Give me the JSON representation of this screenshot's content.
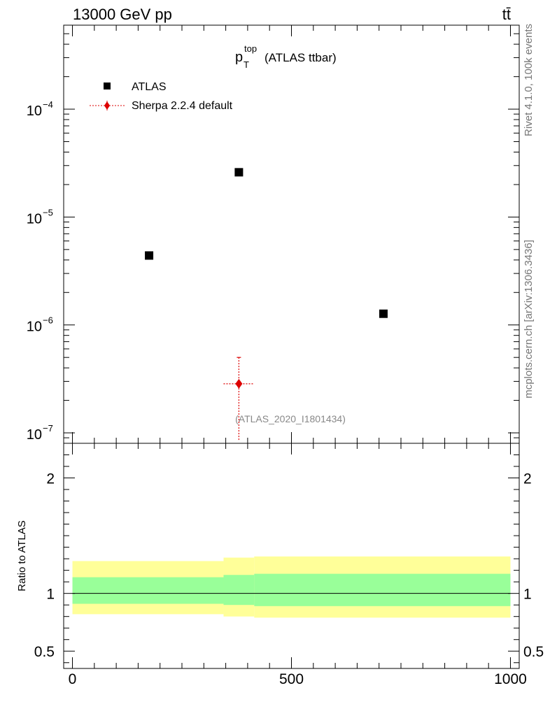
{
  "header": {
    "left_label": "13000 GeV pp",
    "right_label": "tt̄"
  },
  "side_labels": {
    "rivet": "Rivet 4.1.0,  100k events",
    "mcplots": "mcplots.cern.ch [arXiv:1306.3436]"
  },
  "chart_data": [
    {
      "type": "scatter",
      "title_main": "p",
      "title_sup": "top",
      "title_sub": "T",
      "title_rest": "(ATLAS ttbar)",
      "watermark": "(ATLAS_2020_I1801434)",
      "y_scale": "log",
      "ylim": [
        8e-08,
        0.0006
      ],
      "xlim": [
        -20,
        1020
      ],
      "y_ticks": [
        {
          "value": 1e-07,
          "base": "10",
          "exp": "−7"
        },
        {
          "value": 1e-06,
          "base": "10",
          "exp": "−6"
        },
        {
          "value": 1e-05,
          "base": "10",
          "exp": "−5"
        },
        {
          "value": 0.0001,
          "base": "10",
          "exp": "−4"
        }
      ],
      "legend_position": "top-left",
      "series": [
        {
          "name": "ATLAS",
          "marker": "square",
          "color": "#000000",
          "points": [
            {
              "x": 175,
              "y": 4.4e-06
            },
            {
              "x": 380,
              "y": 2.6e-05
            },
            {
              "x": 710,
              "y": 1.27e-06
            }
          ]
        },
        {
          "name": "Sherpa 2.2.4 default",
          "marker": "diamond",
          "color": "#dd0000",
          "line_style": "dotted",
          "points": [
            {
              "x": 380,
              "x_low": 345,
              "x_high": 415,
              "y": 2.85e-07,
              "y_low": 8.4e-08,
              "y_high": 5e-07
            }
          ]
        }
      ]
    },
    {
      "type": "area",
      "ylabel": "Ratio to ATLAS",
      "ylim": [
        0.35,
        2.3
      ],
      "xlim": [
        -20,
        1020
      ],
      "y_ticks": [
        {
          "value": 0.5,
          "label": "0.5"
        },
        {
          "value": 1,
          "label": "1"
        },
        {
          "value": 2,
          "label": "2"
        }
      ],
      "x_ticks": [
        {
          "value": 0,
          "label": "0"
        },
        {
          "value": 500,
          "label": "500"
        },
        {
          "value": 1000,
          "label": "1000"
        }
      ],
      "reference_line": 1,
      "bands": [
        {
          "name": "outer",
          "color": "#ffff99",
          "segments": [
            {
              "x0": 0,
              "x1": 345,
              "low": 0.82,
              "high": 1.28
            },
            {
              "x0": 345,
              "x1": 415,
              "low": 0.8,
              "high": 1.31
            },
            {
              "x0": 415,
              "x1": 1000,
              "low": 0.79,
              "high": 1.32
            }
          ]
        },
        {
          "name": "inner",
          "color": "#99ff99",
          "segments": [
            {
              "x0": 0,
              "x1": 345,
              "low": 0.91,
              "high": 1.14
            },
            {
              "x0": 345,
              "x1": 415,
              "low": 0.9,
              "high": 1.16
            },
            {
              "x0": 415,
              "x1": 1000,
              "low": 0.89,
              "high": 1.17
            }
          ]
        }
      ]
    }
  ]
}
